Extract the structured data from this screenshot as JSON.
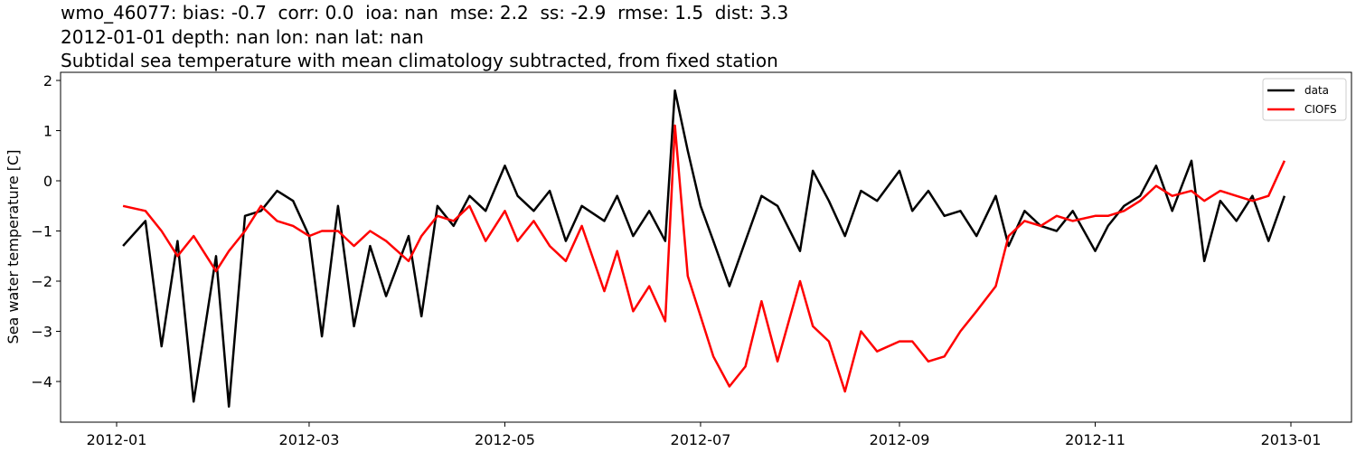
{
  "figure": {
    "title_lines": [
      "wmo_46077: bias: -0.7  corr: 0.0  ioa: nan  mse: 2.2  ss: -2.9  rmse: 1.5  dist: 3.3",
      "2012-01-01 depth: nan lon: nan lat: nan",
      "Subtidal sea temperature with mean climatology subtracted, from fixed station"
    ]
  },
  "colors": {
    "data": "#000000",
    "model": "#ff0000",
    "axes": "#000000",
    "background": "#ffffff"
  },
  "chart_data": {
    "type": "line",
    "title": "wmo_46077: bias: -0.7  corr: 0.0  ioa: nan  mse: 2.2  ss: -2.9  rmse: 1.5  dist: 3.3 / 2012-01-01 depth: nan lon: nan lat: nan / Subtidal sea temperature with mean climatology subtracted, from fixed station",
    "xlabel": "",
    "ylabel": "Sea water temperature [C]",
    "ylim": [
      -4.8,
      2.15
    ],
    "xlim": [
      "2011-12-20",
      "2013-01-14"
    ],
    "yticks": [
      2,
      1,
      0,
      -1,
      -2,
      -3,
      -4
    ],
    "ytick_labels": [
      "2",
      "1",
      "0",
      "−1",
      "−2",
      "−3",
      "−4"
    ],
    "xticks": [
      "2012-01",
      "2012-03",
      "2012-05",
      "2012-07",
      "2012-09",
      "2012-11",
      "2013-01"
    ],
    "grid": false,
    "legend": {
      "position": "upper right",
      "entries": [
        "data",
        "CIOFS"
      ]
    },
    "x": [
      "2012-01-03",
      "2012-01-10",
      "2012-01-15",
      "2012-01-20",
      "2012-01-25",
      "2012-02-01",
      "2012-02-05",
      "2012-02-10",
      "2012-02-15",
      "2012-02-20",
      "2012-02-25",
      "2012-03-01",
      "2012-03-05",
      "2012-03-10",
      "2012-03-15",
      "2012-03-20",
      "2012-03-25",
      "2012-04-01",
      "2012-04-05",
      "2012-04-10",
      "2012-04-15",
      "2012-04-20",
      "2012-04-25",
      "2012-05-01",
      "2012-05-05",
      "2012-05-10",
      "2012-05-15",
      "2012-05-20",
      "2012-05-25",
      "2012-06-01",
      "2012-06-05",
      "2012-06-10",
      "2012-06-15",
      "2012-06-20",
      "2012-06-23",
      "2012-06-27",
      "2012-07-01",
      "2012-07-05",
      "2012-07-10",
      "2012-07-15",
      "2012-07-20",
      "2012-07-25",
      "2012-08-01",
      "2012-08-05",
      "2012-08-10",
      "2012-08-15",
      "2012-08-20",
      "2012-08-25",
      "2012-09-01",
      "2012-09-05",
      "2012-09-10",
      "2012-09-15",
      "2012-09-20",
      "2012-09-25",
      "2012-10-01",
      "2012-10-05",
      "2012-10-10",
      "2012-10-15",
      "2012-10-20",
      "2012-10-25",
      "2012-11-01",
      "2012-11-05",
      "2012-11-10",
      "2012-11-15",
      "2012-11-20",
      "2012-11-25",
      "2012-12-01",
      "2012-12-05",
      "2012-12-10",
      "2012-12-15",
      "2012-12-20",
      "2012-12-25",
      "2012-12-30"
    ],
    "series": [
      {
        "name": "data",
        "color": "#000000",
        "values": [
          -1.3,
          -0.8,
          -3.3,
          -1.2,
          -4.4,
          -1.5,
          -4.5,
          -0.7,
          -0.6,
          -0.2,
          -0.4,
          -1.1,
          -3.1,
          -0.5,
          -2.9,
          -1.3,
          -2.3,
          -1.1,
          -2.7,
          -0.5,
          -0.9,
          -0.3,
          -0.6,
          0.3,
          -0.3,
          -0.6,
          -0.2,
          -1.2,
          -0.5,
          -0.8,
          -0.3,
          -1.1,
          -0.6,
          -1.2,
          1.8,
          0.6,
          -0.5,
          -1.2,
          -2.1,
          -1.2,
          -0.3,
          -0.5,
          -1.4,
          0.2,
          -0.4,
          -1.1,
          -0.2,
          -0.4,
          0.2,
          -0.6,
          -0.2,
          -0.7,
          -0.6,
          -1.1,
          -0.3,
          -1.3,
          -0.6,
          -0.9,
          -1.0,
          -0.6,
          -1.4,
          -0.9,
          -0.5,
          -0.3,
          0.3,
          -0.6,
          0.4,
          -1.6,
          -0.4,
          -0.8,
          -0.3,
          -1.2,
          -0.3
        ]
      },
      {
        "name": "CIOFS",
        "color": "#ff0000",
        "values": [
          -0.5,
          -0.6,
          -1.0,
          -1.5,
          -1.1,
          -1.8,
          -1.4,
          -1.0,
          -0.5,
          -0.8,
          -0.9,
          -1.1,
          -1.0,
          -1.0,
          -1.3,
          -1.0,
          -1.2,
          -1.6,
          -1.1,
          -0.7,
          -0.8,
          -0.5,
          -1.2,
          -0.6,
          -1.2,
          -0.8,
          -1.3,
          -1.6,
          -0.9,
          -2.2,
          -1.4,
          -2.6,
          -2.1,
          -2.8,
          1.1,
          -1.9,
          -2.7,
          -3.5,
          -4.1,
          -3.7,
          -2.4,
          -3.6,
          -2.0,
          -2.9,
          -3.2,
          -4.2,
          -3.0,
          -3.4,
          -3.2,
          -3.2,
          -3.6,
          -3.5,
          -3.0,
          -2.6,
          -2.1,
          -1.1,
          -0.8,
          -0.9,
          -0.7,
          -0.8,
          -0.7,
          -0.7,
          -0.6,
          -0.4,
          -0.1,
          -0.3,
          -0.2,
          -0.4,
          -0.2,
          -0.3,
          -0.4,
          -0.3,
          0.4
        ]
      }
    ]
  }
}
